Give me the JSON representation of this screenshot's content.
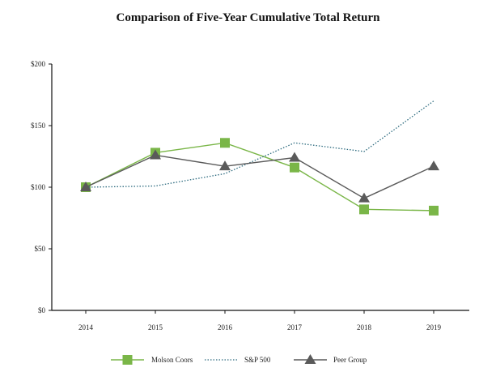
{
  "chart_data": {
    "type": "line",
    "title": "Comparison of Five-Year Cumulative Total Return",
    "xlabel": "",
    "ylabel": "",
    "categories": [
      "2014",
      "2015",
      "2016",
      "2017",
      "2018",
      "2019"
    ],
    "ylim": [
      0,
      200
    ],
    "yticks": [
      0,
      50,
      100,
      150,
      200
    ],
    "ytick_labels": [
      "$0",
      "$50",
      "$100",
      "$150",
      "$200"
    ],
    "grid": false,
    "legend_position": "bottom",
    "series": [
      {
        "name": "Molson Coors",
        "values": [
          100,
          128,
          136,
          116,
          82,
          81
        ],
        "color": "#7ab648",
        "style": "solid",
        "marker": "square"
      },
      {
        "name": "S&P 500",
        "values": [
          100,
          101,
          111,
          136,
          129,
          170
        ],
        "color": "#2d6b7f",
        "style": "dotted",
        "marker": "none"
      },
      {
        "name": "Peer Group",
        "values": [
          100,
          126,
          117,
          124,
          91,
          117
        ],
        "color": "#5a5a5a",
        "style": "solid",
        "marker": "triangle"
      }
    ]
  }
}
